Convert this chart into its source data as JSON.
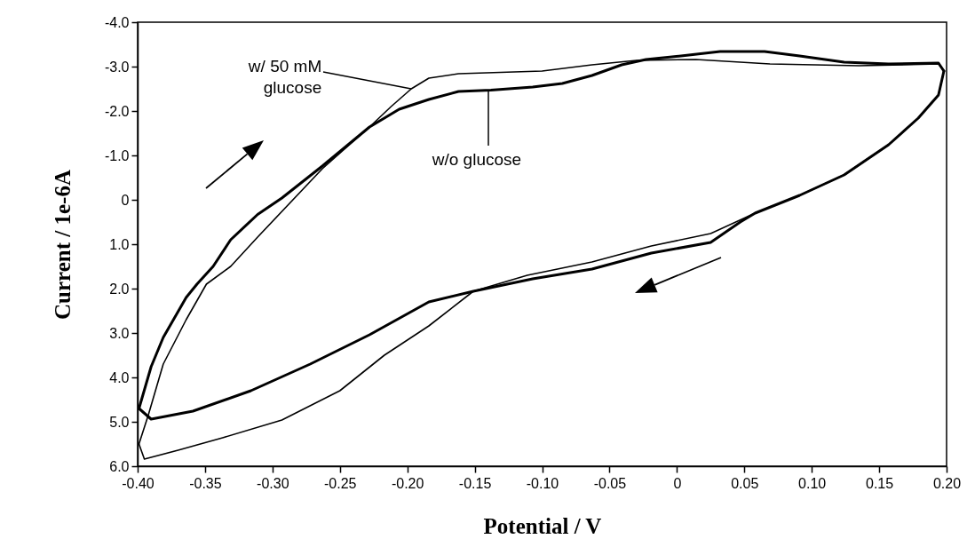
{
  "chart_data": {
    "type": "line",
    "xlabel": "Potential / V",
    "ylabel": "Current / 1e-6A",
    "xlim": [
      -0.4,
      0.2
    ],
    "xticks": [
      {
        "value": -0.4,
        "label": "-0.40"
      },
      {
        "value": -0.35,
        "label": "-0.35"
      },
      {
        "value": -0.3,
        "label": "-0.30"
      },
      {
        "value": -0.25,
        "label": "-0.25"
      },
      {
        "value": -0.2,
        "label": "-0.20"
      },
      {
        "value": -0.15,
        "label": "-0.15"
      },
      {
        "value": -0.1,
        "label": "-0.10"
      },
      {
        "value": -0.05,
        "label": "-0.05"
      },
      {
        "value": 0,
        "label": "0"
      },
      {
        "value": 0.05,
        "label": "0.05"
      },
      {
        "value": 0.1,
        "label": "0.10"
      },
      {
        "value": 0.15,
        "label": "0.15"
      },
      {
        "value": 0.2,
        "label": "0.20"
      }
    ],
    "ylim": [
      6,
      -4
    ],
    "yticks": [
      {
        "value": -4,
        "label": "-4.0"
      },
      {
        "value": -3,
        "label": "-3.0"
      },
      {
        "value": -2,
        "label": "-2.0"
      },
      {
        "value": -1,
        "label": "-1.0"
      },
      0,
      {
        "value": 1,
        "label": "1.0"
      },
      {
        "value": 2,
        "label": "2.0"
      },
      {
        "value": 3,
        "label": "3.0"
      },
      {
        "value": 4,
        "label": "4.0"
      },
      {
        "value": 5,
        "label": "5.0"
      },
      {
        "value": 6,
        "label": "6.0"
      }
    ],
    "series": [
      {
        "color": "#000000",
        "x": [
          -0.399,
          -0.39,
          -0.381,
          -0.364,
          -0.356,
          -0.344,
          -0.331,
          -0.311,
          -0.293,
          -0.263,
          -0.228,
          -0.206,
          -0.184,
          -0.162,
          -0.138,
          -0.107,
          -0.085,
          -0.063,
          -0.041,
          -0.023,
          0.003,
          0.032,
          0.065,
          0.091,
          0.124,
          0.157,
          0.194,
          0.198
        ],
        "values": [
          4.7,
          3.76,
          3.1,
          2.2,
          1.9,
          1.5,
          0.9,
          0.33,
          -0.04,
          -0.76,
          -1.64,
          -2.04,
          -2.26,
          -2.44,
          -2.47,
          -2.54,
          -2.62,
          -2.8,
          -3.04,
          -3.16,
          -3.24,
          -3.34,
          -3.34,
          -3.24,
          -3.1,
          -3.06,
          -3.08,
          -2.9
        ]
      },
      {
        "color": "#000000",
        "x": [
          -0.399,
          -0.39,
          -0.359,
          -0.316,
          -0.272,
          -0.228,
          -0.184,
          -0.151,
          -0.107,
          -0.063,
          -0.019,
          0.025,
          0.047,
          0.058,
          0.091,
          0.124,
          0.157,
          0.179,
          0.194,
          0.198
        ],
        "values": [
          4.7,
          4.94,
          4.76,
          4.3,
          3.7,
          3.04,
          2.3,
          2.06,
          1.78,
          1.56,
          1.2,
          0.96,
          0.5,
          0.3,
          -0.1,
          -0.56,
          -1.24,
          -1.84,
          -2.36,
          -2.9
        ]
      },
      {
        "color": "#000000",
        "x": [
          -0.399,
          -0.392,
          -0.381,
          -0.364,
          -0.349,
          -0.331,
          -0.311,
          -0.263,
          -0.228,
          -0.212,
          -0.197,
          -0.184,
          -0.162,
          -0.1,
          -0.063,
          -0.03,
          0.014,
          0.069,
          0.135,
          0.194,
          0.198
        ],
        "values": [
          5.5,
          4.84,
          3.7,
          2.7,
          1.9,
          1.5,
          0.84,
          -0.7,
          -1.64,
          -2.1,
          -2.5,
          -2.74,
          -2.84,
          -2.9,
          -3.04,
          -3.14,
          -3.16,
          -3.06,
          -3.02,
          -3.06,
          -2.9
        ]
      },
      {
        "color": "#000000",
        "x": [
          -0.399,
          -0.395,
          -0.37,
          -0.337,
          -0.293,
          -0.25,
          -0.217,
          -0.184,
          -0.151,
          -0.111,
          -0.063,
          -0.019,
          0.025,
          0.058,
          0.091,
          0.124,
          0.157,
          0.179,
          0.194,
          0.198
        ],
        "values": [
          5.5,
          5.84,
          5.64,
          5.36,
          4.96,
          4.3,
          3.5,
          2.84,
          2.06,
          1.7,
          1.4,
          1.04,
          0.76,
          0.3,
          -0.1,
          -0.56,
          -1.24,
          -1.84,
          -2.36,
          -2.9
        ]
      }
    ],
    "annotations": [
      {
        "text": "w/ 50 mM\nglucose",
        "x": -0.197,
        "y": -2.5
      },
      {
        "text": "w/o glucose",
        "x": -0.14,
        "y": -2.47
      }
    ]
  }
}
